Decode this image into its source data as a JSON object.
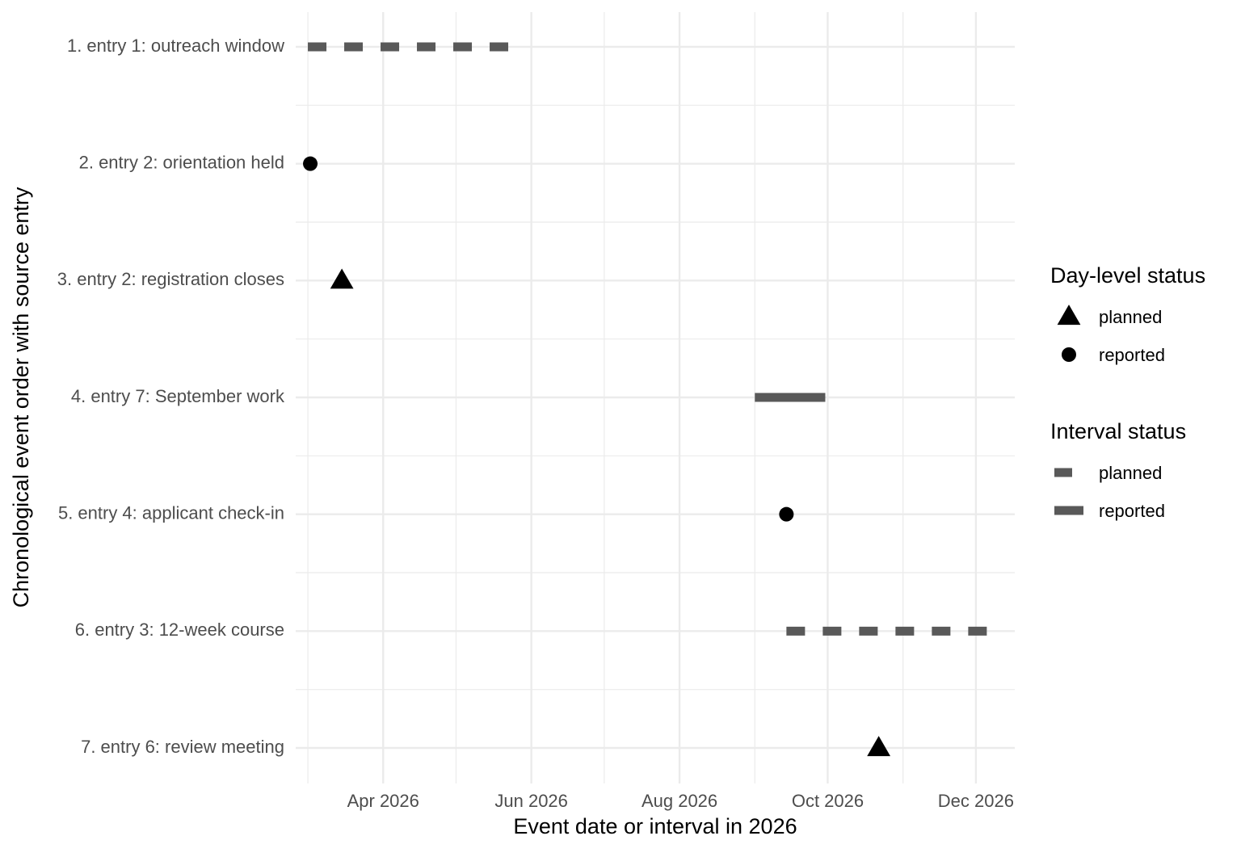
{
  "chart_data": {
    "type": "timeline",
    "x_label": "Event date or interval in 2026",
    "y_label": "Chronological event order with source entry",
    "categories": [
      "1. entry 1: outreach window",
      "2. entry 2: orientation held",
      "3. entry 2: registration closes",
      "4. entry 7: September work",
      "5. entry 4: applicant check-in",
      "6. entry 3: 12-week course",
      "7. entry 6: review meeting"
    ],
    "start": [
      60,
      61,
      74,
      244,
      257,
      257,
      295
    ],
    "end": [
      143,
      null,
      null,
      273,
      null,
      341,
      null
    ],
    "status": [
      "planned",
      "reported",
      "planned",
      "reported",
      "reported",
      "planned",
      "planned"
    ],
    "xlim": [
      55,
      351
    ],
    "xticks": [
      {
        "value": 91,
        "label": "Apr 2026"
      },
      {
        "value": 152,
        "label": "Jun 2026"
      },
      {
        "value": 213,
        "label": "Aug 2026"
      },
      {
        "value": 274,
        "label": "Oct 2026"
      },
      {
        "value": 335,
        "label": "Dec 2026"
      }
    ],
    "xminor": [
      60,
      121,
      182,
      244,
      305
    ],
    "color": "#595959",
    "grid": true,
    "legends": [
      {
        "title": "Day-level status",
        "kind": "point",
        "entries": [
          "planned",
          "reported"
        ]
      },
      {
        "title": "Interval status",
        "kind": "interval",
        "entries": [
          "planned",
          "reported"
        ]
      }
    ]
  }
}
